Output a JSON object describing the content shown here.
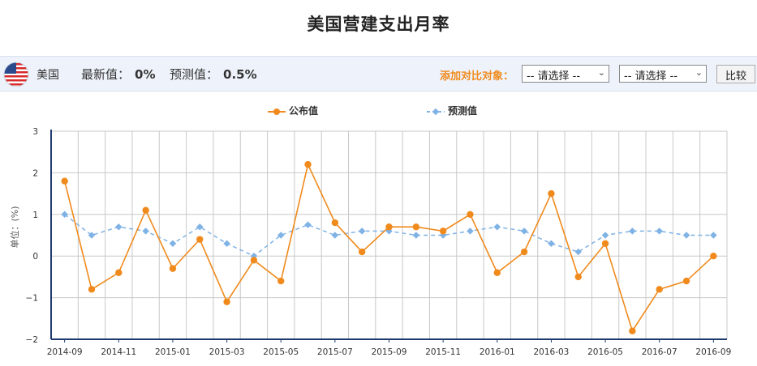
{
  "header": {
    "title": "美国营建支出月率"
  },
  "info": {
    "country": "美国",
    "latest_label": "最新值：",
    "latest_value": "0%",
    "forecast_label": "预测值：",
    "forecast_value": "0.5%",
    "compare_label": "添加对比对象：",
    "select1": "-- 请选择 --",
    "select2": "-- 请选择 --",
    "compare_button": "比较"
  },
  "legend": {
    "actual": "公布值",
    "forecast": "预测值"
  },
  "colors": {
    "actual": "#f08a1c",
    "forecast": "#7fb2e5",
    "axis": "#1f3a6e",
    "grid": "#c8c8c8"
  },
  "chart_data": {
    "type": "line",
    "ylabel": "单位：(%)",
    "ylim": [
      -2,
      3
    ],
    "yticks": [
      -2,
      -1,
      0,
      1,
      2,
      3
    ],
    "xtick_labels": [
      "2014-09",
      "2014-11",
      "2015-01",
      "2015-03",
      "2015-05",
      "2015-07",
      "2015-09",
      "2015-11",
      "2016-01",
      "2016-03",
      "2016-05",
      "2016-07",
      "2016-09"
    ],
    "x": [
      "2014-09",
      "2014-10",
      "2014-11",
      "2014-12",
      "2015-01",
      "2015-02",
      "2015-03",
      "2015-04",
      "2015-05",
      "2015-06",
      "2015-07",
      "2015-08",
      "2015-09",
      "2015-10",
      "2015-11",
      "2015-12",
      "2016-01",
      "2016-02",
      "2016-03",
      "2016-04",
      "2016-05",
      "2016-06",
      "2016-07",
      "2016-08",
      "2016-09"
    ],
    "series": [
      {
        "name": "公布值",
        "values": [
          1.8,
          -0.8,
          -0.4,
          1.1,
          -0.3,
          0.4,
          -1.1,
          -0.1,
          -0.6,
          2.2,
          0.8,
          0.1,
          0.7,
          0.7,
          0.6,
          1.0,
          -0.4,
          0.1,
          1.5,
          -0.5,
          0.3,
          -1.8,
          -0.8,
          -0.6,
          0.0
        ]
      },
      {
        "name": "预测值",
        "values": [
          1.0,
          0.5,
          0.7,
          0.6,
          0.3,
          0.7,
          0.3,
          0.0,
          0.5,
          0.75,
          0.5,
          0.6,
          0.6,
          0.5,
          0.5,
          0.6,
          0.7,
          0.6,
          0.3,
          0.1,
          0.5,
          0.6,
          0.6,
          0.5,
          0.5
        ]
      }
    ],
    "grid": true,
    "legend_position": "top-center"
  }
}
